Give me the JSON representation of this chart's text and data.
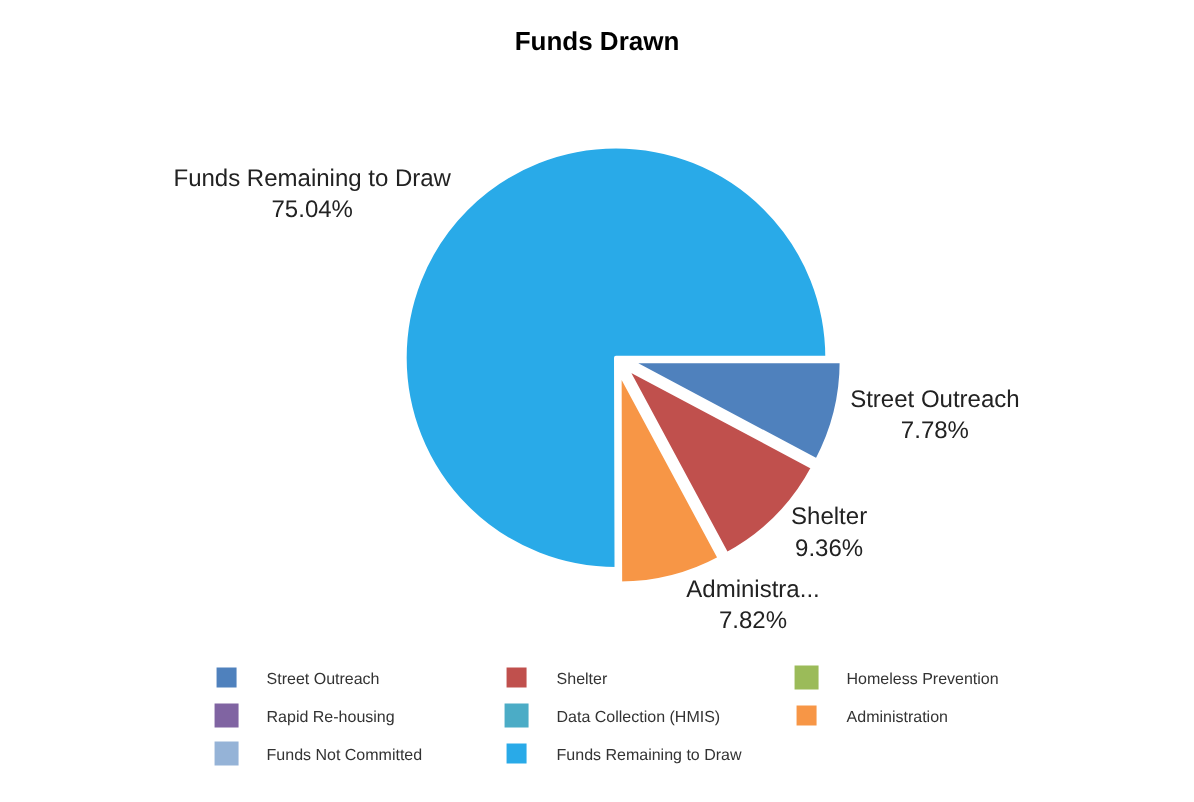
{
  "chart_data": {
    "type": "pie",
    "title": "Funds Drawn",
    "categories": [
      "Street Outreach",
      "Shelter",
      "Homeless Prevention",
      "Rapid Re-housing",
      "Data Collection (HMIS)",
      "Administration",
      "Funds Not Committed",
      "Funds Remaining to Draw"
    ],
    "values": [
      7.78,
      9.36,
      0,
      0,
      0,
      7.82,
      0,
      75.04
    ],
    "colors": [
      "#4f81bd",
      "#c0504d",
      "#9bbb59",
      "#8064a2",
      "#4bacc6",
      "#f79646",
      "#95b3d7",
      "#29aae8"
    ],
    "value_labels": [
      "Street Outreach\n7.78%",
      "Shelter\n9.36%",
      null,
      null,
      null,
      "Administra...\n7.82%",
      null,
      "Funds Remaining to Draw\n75.04%"
    ],
    "legend": "bottom"
  }
}
